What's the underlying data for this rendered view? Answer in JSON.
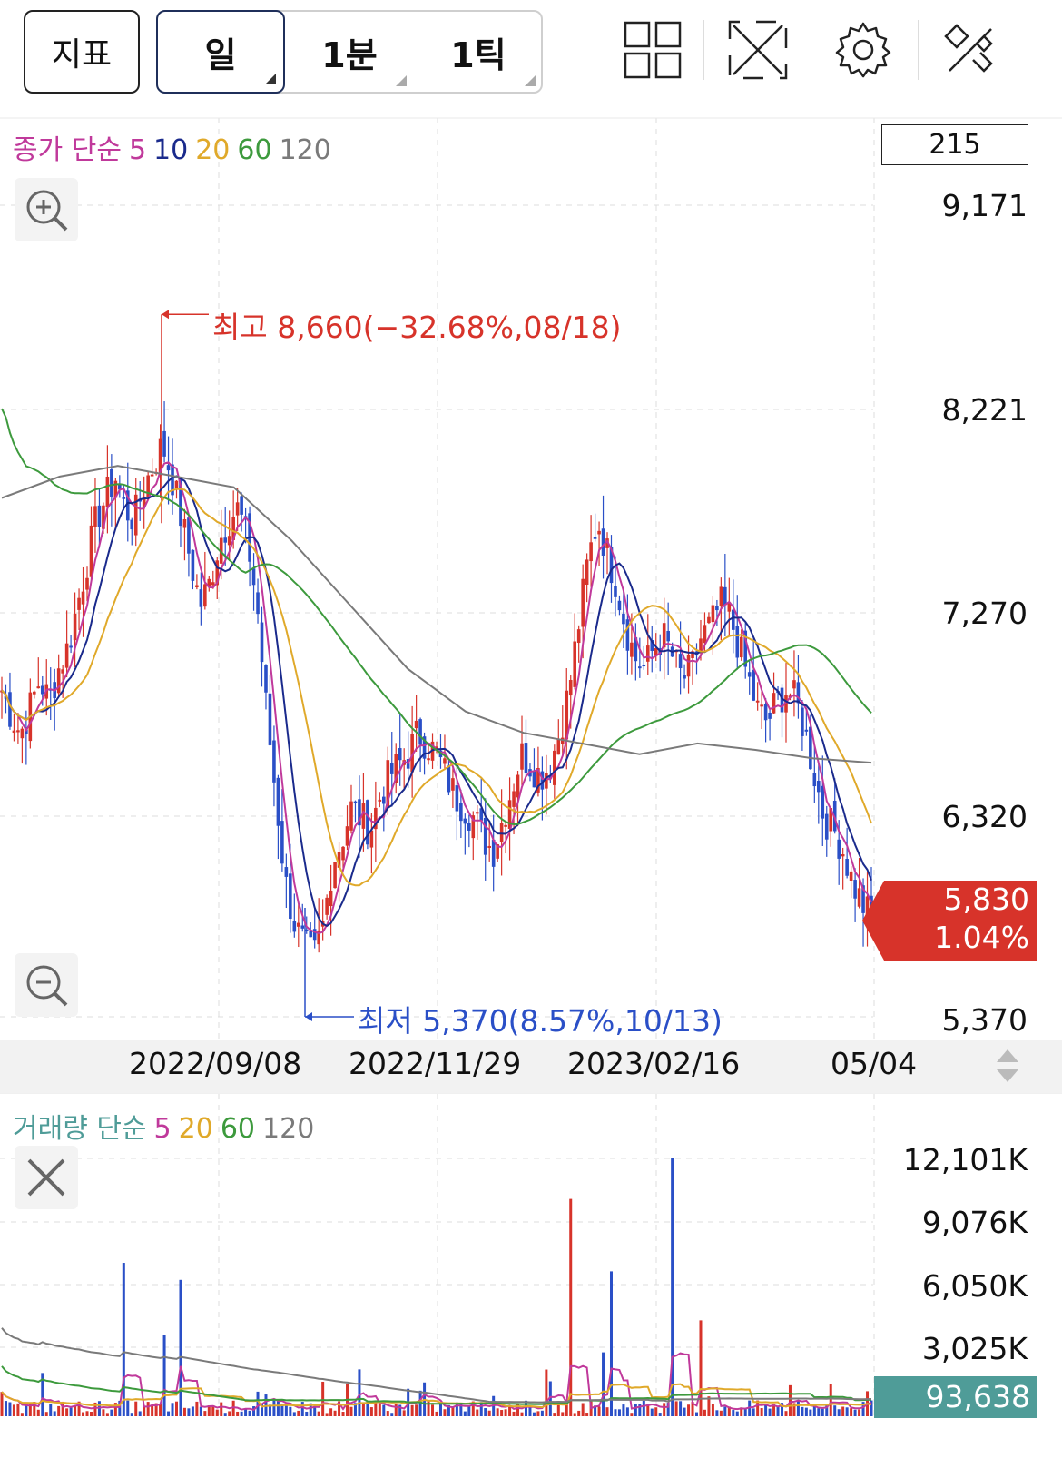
{
  "toolbar": {
    "indicator_label": "지표",
    "periods": [
      "일",
      "1분",
      "1틱"
    ],
    "icons": [
      "grid-layout-icon",
      "expand-icon",
      "settings-gear-icon",
      "tools-icon"
    ]
  },
  "price_panel": {
    "ma_legend": {
      "prefix": "종가 단순",
      "periods": [
        "5",
        "10",
        "20",
        "60",
        "120"
      ]
    },
    "count_box": "215",
    "y_labels": [
      "9,171",
      "8,221",
      "7,270",
      "6,320",
      "5,370"
    ],
    "current_price": "5,830",
    "current_change": "1.04%",
    "high_annotation": "최고 8,660(−32.68%,08/18)",
    "low_annotation": "최저 5,370(8.57%,10/13)"
  },
  "x_labels": [
    "2022/09/08",
    "2022/11/29",
    "2023/02/16",
    "05/04"
  ],
  "volume_panel": {
    "ma_legend": {
      "prefix": "거래량 단순",
      "periods": [
        "5",
        "20",
        "60",
        "120"
      ]
    },
    "y_labels": [
      "12,101K",
      "9,076K",
      "6,050K",
      "3,025K"
    ],
    "current_volume": "93,638"
  },
  "colors": {
    "up": "#d7332a",
    "down": "#2a4fc7",
    "ma5": "#c0399b",
    "ma10": "#1a2a8c",
    "ma20": "#e0a92a",
    "ma60": "#3d9a3d",
    "ma120": "#7a7a7a",
    "vol_tag": "#4f9c98"
  },
  "chart_data": {
    "type": "candlestick",
    "y_range": [
      5370,
      9171
    ],
    "high": {
      "value": 8660,
      "date": "08/18",
      "pct": -32.68
    },
    "low": {
      "value": 5370,
      "date": "10/13",
      "pct": 8.57
    },
    "close_path": [
      6900,
      6780,
      6700,
      6820,
      6950,
      6850,
      7000,
      7100,
      7300,
      7500,
      7700,
      7800,
      7900,
      7750,
      7700,
      7850,
      7950,
      8050,
      7900,
      7700,
      7500,
      7300,
      7400,
      7600,
      7700,
      7750,
      7600,
      7300,
      6800,
      6400,
      6000,
      5800,
      5700,
      5650,
      5800,
      6100,
      6200,
      6350,
      6300,
      6250,
      6400,
      6500,
      6550,
      6600,
      6700,
      6650,
      6600,
      6500,
      6400,
      6350,
      6300,
      6200,
      6150,
      6300,
      6450,
      6600,
      6550,
      6500,
      6550,
      6700,
      6900,
      7200,
      7500,
      7700,
      7550,
      7400,
      7200,
      7050,
      7000,
      7100,
      7150,
      7050,
      6950,
      7000,
      7150,
      7200,
      7300,
      7250,
      7100,
      6950,
      6800,
      6750,
      6850,
      6900,
      6850,
      6700,
      6500,
      6300,
      6250,
      6150,
      6000,
      5900,
      5830
    ],
    "ma120_y": [
      7800,
      7900,
      7950,
      7900,
      7850,
      7600,
      7300,
      7000,
      6800,
      6700,
      6650,
      6600,
      6650,
      6620,
      6580,
      6560
    ]
  }
}
